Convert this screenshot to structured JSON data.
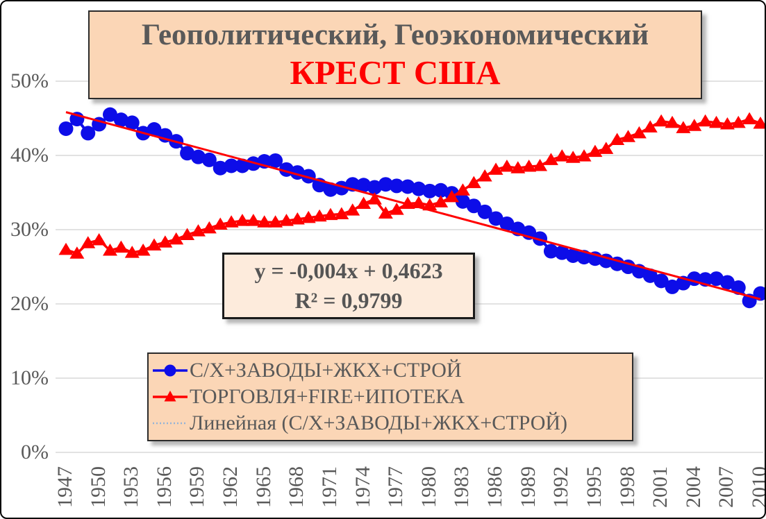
{
  "title": {
    "line1": "Геополитический, Геоэкономический",
    "line2": "КРЕСТ США"
  },
  "equation": {
    "line1": "y = -0,004x + 0,4623",
    "line2": "R² = 0,9799"
  },
  "legend": {
    "items": [
      {
        "label": "С/Х+ЗАВОДЫ+ЖКХ+СТРОЙ",
        "marker": "circle",
        "color": "#0D0DE8"
      },
      {
        "label": "ТОРГОВЛЯ+FIRE+ИПОТЕКА",
        "marker": "triangle",
        "color": "#FF0000"
      },
      {
        "label": "Линейная (С/Х+ЗАВОДЫ+ЖКХ+СТРОЙ)",
        "marker": "dotted-line",
        "color": "#95B3D7"
      }
    ]
  },
  "colors": {
    "series_blue": "#0D0DE8",
    "series_red": "#FF0000",
    "trendline": "#FF0000",
    "gridline": "#D9D9D9",
    "axis_text": "#595959",
    "title_text": "#595959",
    "title_accent": "#FF0000",
    "box_bg": "#FBD6B6",
    "equation_box_bg": "#FDEBDC"
  },
  "chart_data": {
    "type": "line",
    "title": "Геополитический, Геоэкономический КРЕСТ США",
    "x_first_year": 1947,
    "x_last_year": 2010,
    "x_tick_labels": [
      "1947",
      "1950",
      "1953",
      "1956",
      "1959",
      "1962",
      "1965",
      "1968",
      "1971",
      "1974",
      "1977",
      "1980",
      "1983",
      "1986",
      "1989",
      "1992",
      "1995",
      "1998",
      "2001",
      "2004",
      "2007",
      "2010"
    ],
    "y_ticks": [
      "0%",
      "10%",
      "20%",
      "30%",
      "40%",
      "50%"
    ],
    "y_tick_values": [
      0,
      10,
      20,
      30,
      40,
      50
    ],
    "ylim": [
      0,
      50
    ],
    "grid": "horizontal",
    "legend_position": "bottom-left-box",
    "series": [
      {
        "name": "С/Х+ЗАВОДЫ+ЖКХ+СТРОЙ",
        "marker": "circle",
        "color": "#0D0DE8",
        "values": [
          43.6,
          44.9,
          43.0,
          44.2,
          45.5,
          44.8,
          44.4,
          43.0,
          43.5,
          42.7,
          41.9,
          40.3,
          39.8,
          39.4,
          38.3,
          38.6,
          38.6,
          38.9,
          39.2,
          39.3,
          38.1,
          37.7,
          37.2,
          36.0,
          35.4,
          35.6,
          36.1,
          36.0,
          35.7,
          36.1,
          35.9,
          35.8,
          35.5,
          35.2,
          35.3,
          34.9,
          33.8,
          33.2,
          32.4,
          31.5,
          30.8,
          30.1,
          29.6,
          28.8,
          27.1,
          26.9,
          26.5,
          26.3,
          26.1,
          25.8,
          25.4,
          25.0,
          24.4,
          23.8,
          23.1,
          22.3,
          22.8,
          23.4,
          23.3,
          23.4,
          22.9,
          22.2,
          20.4,
          21.4
        ]
      },
      {
        "name": "ТОРГОВЛЯ+FIRE+ИПОТЕКА",
        "marker": "triangle",
        "color": "#FF0000",
        "values": [
          27.3,
          26.8,
          28.2,
          28.6,
          27.2,
          27.6,
          26.9,
          27.2,
          27.9,
          28.3,
          28.7,
          29.3,
          29.8,
          30.2,
          30.7,
          31.0,
          31.2,
          31.2,
          31.0,
          31.0,
          31.2,
          31.4,
          31.6,
          31.8,
          32.0,
          32.1,
          32.6,
          33.5,
          34.1,
          32.2,
          32.7,
          33.5,
          33.6,
          33.3,
          33.7,
          34.4,
          35.3,
          36.3,
          37.2,
          38.1,
          38.5,
          38.3,
          38.5,
          38.6,
          39.4,
          39.9,
          39.7,
          39.9,
          40.5,
          40.9,
          42.1,
          42.5,
          43.0,
          43.8,
          44.6,
          44.4,
          43.7,
          44.0,
          44.6,
          44.4,
          44.2,
          44.4,
          44.9,
          44.3
        ]
      }
    ],
    "trendline": {
      "name": "Линейная (С/Х+ЗАВОДЫ+ЖКХ+СТРОЙ)",
      "applies_to": "С/Х+ЗАВОДЫ+ЖКХ+СТРОЙ",
      "slope": -0.004,
      "intercept": 0.4623,
      "equation_label": "y = -0,004x + 0,4623",
      "r2_label": "R² = 0,9799",
      "color": "#FF0000"
    }
  }
}
